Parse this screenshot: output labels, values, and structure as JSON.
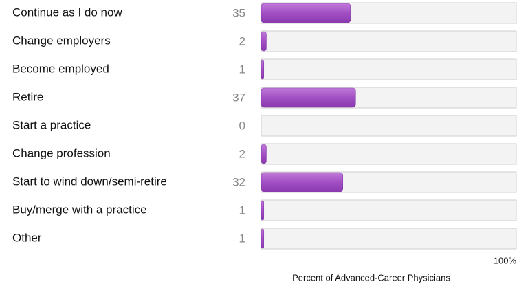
{
  "chart_data": {
    "type": "barh",
    "categories": [
      "Continue as I do now",
      "Change employers",
      "Become employed",
      "Retire",
      "Start a practice",
      "Change profession",
      "Start to wind down/semi-retire",
      "Buy/merge with a practice",
      "Other"
    ],
    "values": [
      35,
      2,
      1,
      37,
      0,
      2,
      32,
      1,
      1
    ],
    "color": "#a24fc4",
    "xlim": [
      0,
      100
    ],
    "xticks": [
      {
        "value": 100,
        "label": "100%"
      }
    ],
    "xlabel": "Percent of Advanced-Career Physicians"
  }
}
